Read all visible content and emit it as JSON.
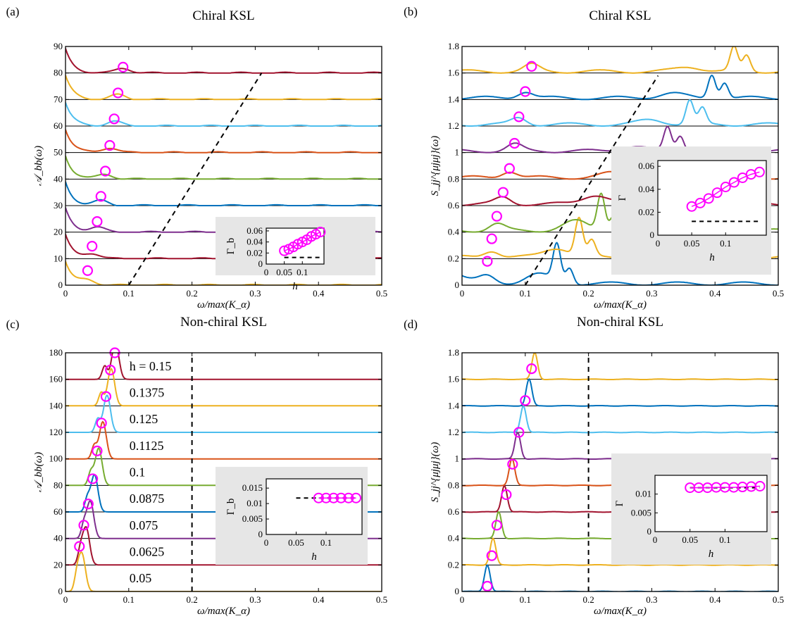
{
  "figure": {
    "colors": {
      "series": [
        "#edb120",
        "#a2142f",
        "#77ac30",
        "#7e2f8e",
        "#d95319",
        "#4dbeee",
        "#0072bd"
      ],
      "circle": "#ff00ff",
      "inset_bg": "#e6e6e6",
      "dashed": "#000000"
    }
  },
  "chart_data": [
    {
      "id": "a",
      "type": "line",
      "panel_label": "(a)",
      "title": "Chiral KSL",
      "xlabel": "ω/max(K_α)",
      "ylabel": "𝒜_bb(ω)",
      "xlim": [
        0,
        0.5
      ],
      "ylim": [
        0,
        90
      ],
      "xticks": [
        "0",
        "0.1",
        "0.2",
        "0.3",
        "0.4",
        "0.5"
      ],
      "xtick_values": [
        0,
        0.1,
        0.2,
        0.3,
        0.4,
        0.5
      ],
      "yticks": [
        "0",
        "10",
        "20",
        "30",
        "40",
        "50",
        "60",
        "70",
        "80",
        "90"
      ],
      "ytick_values": [
        0,
        10,
        20,
        30,
        40,
        50,
        60,
        70,
        80,
        90
      ],
      "series_kind": "spectral_a",
      "offsets": [
        0,
        10,
        20,
        30,
        40,
        50,
        60,
        70,
        80
      ],
      "color_order": [
        0,
        1,
        3,
        6,
        2,
        4,
        5,
        0,
        1
      ],
      "circles": [
        {
          "x": 0.035,
          "y": 5.5
        },
        {
          "x": 0.042,
          "y": 14.7
        },
        {
          "x": 0.05,
          "y": 24
        },
        {
          "x": 0.056,
          "y": 33.5
        },
        {
          "x": 0.063,
          "y": 43
        },
        {
          "x": 0.07,
          "y": 52.7
        },
        {
          "x": 0.077,
          "y": 62.7
        },
        {
          "x": 0.083,
          "y": 72.5
        },
        {
          "x": 0.091,
          "y": 82.2
        }
      ],
      "dashed_line": [
        {
          "x": 0.1,
          "y": 0
        },
        {
          "x": 0.31,
          "y": 80
        }
      ],
      "inset": {
        "xlabel": "h",
        "ylabel": "Γ_b",
        "xlim": [
          0,
          0.16
        ],
        "ylim": [
          0,
          0.065
        ],
        "xticks": [
          "0",
          "0.05",
          "0.1"
        ],
        "xtick_values": [
          0,
          0.05,
          0.1
        ],
        "yticks": [
          "0",
          "0.02",
          "0.04",
          "0.06"
        ],
        "ytick_values": [
          0,
          0.02,
          0.04,
          0.06
        ],
        "points": [
          {
            "x": 0.05,
            "y": 0.024
          },
          {
            "x": 0.0625,
            "y": 0.027
          },
          {
            "x": 0.075,
            "y": 0.031
          },
          {
            "x": 0.0875,
            "y": 0.036
          },
          {
            "x": 0.1,
            "y": 0.04
          },
          {
            "x": 0.1125,
            "y": 0.044
          },
          {
            "x": 0.125,
            "y": 0.05
          },
          {
            "x": 0.1375,
            "y": 0.054
          },
          {
            "x": 0.15,
            "y": 0.058
          }
        ],
        "dashed": [
          {
            "x": 0.05,
            "y": 0.012
          },
          {
            "x": 0.15,
            "y": 0.012
          }
        ]
      }
    },
    {
      "id": "b",
      "type": "line",
      "panel_label": "(b)",
      "title": "Chiral KSL",
      "xlabel": "ω/max(K_α)",
      "ylabel": "S_jj^{μjμj}(ω)",
      "xlim": [
        0,
        0.5
      ],
      "ylim": [
        0,
        1.8
      ],
      "xticks": [
        "0",
        "0.1",
        "0.2",
        "0.3",
        "0.4",
        "0.5"
      ],
      "xtick_values": [
        0,
        0.1,
        0.2,
        0.3,
        0.4,
        0.5
      ],
      "yticks": [
        "0",
        "0.2",
        "0.4",
        "0.6",
        "0.8",
        "1",
        "1.2",
        "1.4",
        "1.6",
        "1.8"
      ],
      "ytick_values": [
        0,
        0.2,
        0.4,
        0.6,
        0.8,
        1.0,
        1.2,
        1.4,
        1.6,
        1.8
      ],
      "series_kind": "spectral_b",
      "offsets": [
        0,
        0.2,
        0.4,
        0.6,
        0.8,
        1.0,
        1.2,
        1.4,
        1.6
      ],
      "color_order": [
        6,
        0,
        2,
        1,
        4,
        3,
        5,
        6,
        0
      ],
      "circles": [
        {
          "x": 0.04,
          "y": 0.18
        },
        {
          "x": 0.047,
          "y": 0.35
        },
        {
          "x": 0.055,
          "y": 0.52
        },
        {
          "x": 0.065,
          "y": 0.7
        },
        {
          "x": 0.075,
          "y": 0.88
        },
        {
          "x": 0.083,
          "y": 1.07
        },
        {
          "x": 0.09,
          "y": 1.27
        },
        {
          "x": 0.1,
          "y": 1.46
        },
        {
          "x": 0.11,
          "y": 1.65
        }
      ],
      "dashed_line": [
        {
          "x": 0.1,
          "y": 0
        },
        {
          "x": 0.31,
          "y": 1.58
        }
      ],
      "inset": {
        "xlabel": "h",
        "ylabel": "Γ",
        "xlim": [
          0,
          0.16
        ],
        "ylim": [
          0,
          0.065
        ],
        "xticks": [
          "0",
          "0.05",
          "0.1"
        ],
        "xtick_values": [
          0,
          0.05,
          0.1
        ],
        "yticks": [
          "0",
          "0.02",
          "0.04",
          "0.06"
        ],
        "ytick_values": [
          0,
          0.02,
          0.04,
          0.06
        ],
        "points": [
          {
            "x": 0.05,
            "y": 0.025
          },
          {
            "x": 0.0625,
            "y": 0.028
          },
          {
            "x": 0.075,
            "y": 0.032
          },
          {
            "x": 0.0875,
            "y": 0.037
          },
          {
            "x": 0.1,
            "y": 0.042
          },
          {
            "x": 0.1125,
            "y": 0.046
          },
          {
            "x": 0.125,
            "y": 0.05
          },
          {
            "x": 0.1375,
            "y": 0.053
          },
          {
            "x": 0.15,
            "y": 0.055
          }
        ],
        "dashed": [
          {
            "x": 0.05,
            "y": 0.012
          },
          {
            "x": 0.15,
            "y": 0.012
          }
        ]
      }
    },
    {
      "id": "c",
      "type": "line",
      "panel_label": "(c)",
      "title": "Non-chiral KSL",
      "xlabel": "ω/max(K_α)",
      "ylabel": "𝒜_bb(ω)",
      "xlim": [
        0,
        0.5
      ],
      "ylim": [
        0,
        180
      ],
      "xticks": [
        "0",
        "0.1",
        "0.2",
        "0.3",
        "0.4",
        "0.5"
      ],
      "xtick_values": [
        0,
        0.1,
        0.2,
        0.3,
        0.4,
        0.5
      ],
      "yticks": [
        "0",
        "20",
        "40",
        "60",
        "80",
        "100",
        "120",
        "140",
        "160",
        "180"
      ],
      "ytick_values": [
        0,
        20,
        40,
        60,
        80,
        100,
        120,
        140,
        160,
        180
      ],
      "series_kind": "peaks_c",
      "offsets": [
        0,
        20,
        40,
        60,
        80,
        100,
        120,
        140,
        160
      ],
      "color_order": [
        0,
        1,
        3,
        6,
        2,
        4,
        5,
        0,
        1
      ],
      "h_labels": [
        "0.05",
        "0.0625",
        "0.075",
        "0.0875",
        "0.1",
        "0.1125",
        "0.125",
        "0.1375",
        "h = 0.15"
      ],
      "circles": [
        {
          "x": 0.022,
          "y": 34
        },
        {
          "x": 0.029,
          "y": 50
        },
        {
          "x": 0.036,
          "y": 66
        },
        {
          "x": 0.043,
          "y": 85
        },
        {
          "x": 0.05,
          "y": 106
        },
        {
          "x": 0.057,
          "y": 127
        },
        {
          "x": 0.064,
          "y": 147
        },
        {
          "x": 0.071,
          "y": 167
        },
        {
          "x": 0.078,
          "y": 180
        }
      ],
      "dashed_line": [
        {
          "x": 0.2,
          "y": 0
        },
        {
          "x": 0.2,
          "y": 180
        }
      ],
      "inset": {
        "xlabel": "h",
        "ylabel": "Γ_b",
        "xlim": [
          0,
          0.16
        ],
        "ylim": [
          0,
          0.018
        ],
        "xticks": [
          "0",
          "0.05",
          "0.1"
        ],
        "xtick_values": [
          0,
          0.05,
          0.1
        ],
        "yticks": [
          "0",
          "0.005",
          "0.01",
          "0.015"
        ],
        "ytick_values": [
          0,
          0.005,
          0.01,
          0.015
        ],
        "points": [
          {
            "x": 0.0875,
            "y": 0.0118
          },
          {
            "x": 0.1,
            "y": 0.0118
          },
          {
            "x": 0.1125,
            "y": 0.0118
          },
          {
            "x": 0.125,
            "y": 0.0118
          },
          {
            "x": 0.1375,
            "y": 0.0118
          },
          {
            "x": 0.15,
            "y": 0.0118
          }
        ],
        "dashed": [
          {
            "x": 0.05,
            "y": 0.0118
          },
          {
            "x": 0.15,
            "y": 0.0118
          }
        ]
      }
    },
    {
      "id": "d",
      "type": "line",
      "panel_label": "(d)",
      "title": "Non-chiral KSL",
      "xlabel": "ω/max(K_α)",
      "ylabel": "S_jj^{μjμj}(ω)",
      "xlim": [
        0,
        0.5
      ],
      "ylim": [
        0,
        1.8
      ],
      "xticks": [
        "0",
        "0.1",
        "0.2",
        "0.3",
        "0.4",
        "0.5"
      ],
      "xtick_values": [
        0,
        0.1,
        0.2,
        0.3,
        0.4,
        0.5
      ],
      "yticks": [
        "0",
        "0.2",
        "0.4",
        "0.6",
        "0.8",
        "1",
        "1.2",
        "1.4",
        "1.6",
        "1.8"
      ],
      "ytick_values": [
        0,
        0.2,
        0.4,
        0.6,
        0.8,
        1.0,
        1.2,
        1.4,
        1.6,
        1.8
      ],
      "series_kind": "peaks_d",
      "offsets": [
        0,
        0.2,
        0.4,
        0.6,
        0.8,
        1.0,
        1.2,
        1.4,
        1.6
      ],
      "color_order": [
        6,
        0,
        2,
        1,
        4,
        3,
        5,
        6,
        0
      ],
      "circles": [
        {
          "x": 0.04,
          "y": 0.04
        },
        {
          "x": 0.047,
          "y": 0.27
        },
        {
          "x": 0.055,
          "y": 0.5
        },
        {
          "x": 0.07,
          "y": 0.73
        },
        {
          "x": 0.08,
          "y": 0.96
        },
        {
          "x": 0.09,
          "y": 1.2
        },
        {
          "x": 0.1,
          "y": 1.44
        },
        {
          "x": 0.11,
          "y": 1.68
        }
      ],
      "dashed_line": [
        {
          "x": 0.2,
          "y": 0
        },
        {
          "x": 0.2,
          "y": 1.8
        }
      ],
      "inset": {
        "xlabel": "h",
        "ylabel": "Γ",
        "xlim": [
          0,
          0.16
        ],
        "ylim": [
          0,
          0.015
        ],
        "xticks": [
          "0",
          "0.05",
          "0.1"
        ],
        "xtick_values": [
          0,
          0.05,
          0.1
        ],
        "yticks": [
          "0",
          "0.005",
          "0.01"
        ],
        "ytick_values": [
          0,
          0.005,
          0.01
        ],
        "points": [
          {
            "x": 0.05,
            "y": 0.0117
          },
          {
            "x": 0.0625,
            "y": 0.0117
          },
          {
            "x": 0.075,
            "y": 0.0117
          },
          {
            "x": 0.0875,
            "y": 0.0118
          },
          {
            "x": 0.1,
            "y": 0.0118
          },
          {
            "x": 0.1125,
            "y": 0.0118
          },
          {
            "x": 0.125,
            "y": 0.0119
          },
          {
            "x": 0.1375,
            "y": 0.012
          },
          {
            "x": 0.15,
            "y": 0.0121
          }
        ],
        "dashed": [
          {
            "x": 0.05,
            "y": 0.0117
          },
          {
            "x": 0.15,
            "y": 0.0117
          }
        ]
      }
    }
  ]
}
